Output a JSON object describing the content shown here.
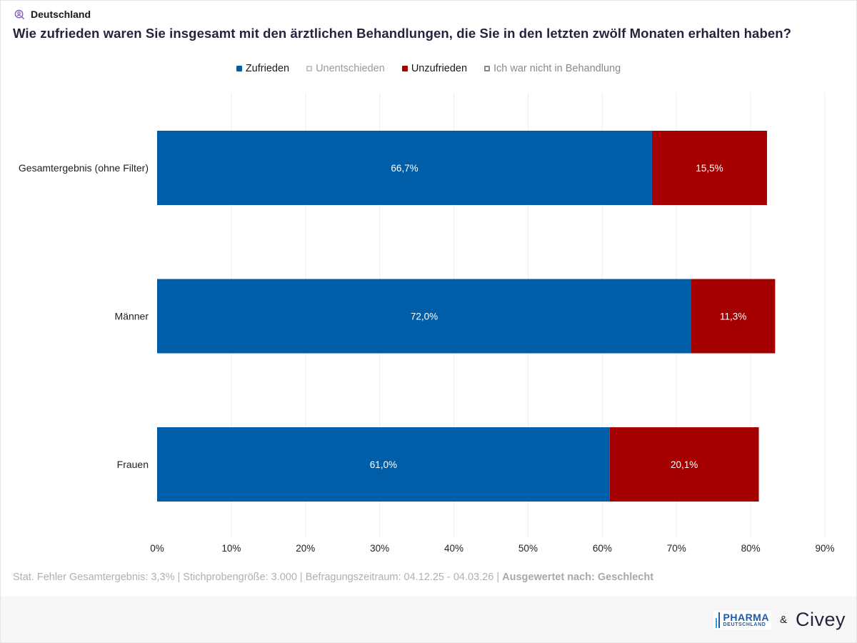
{
  "header": {
    "region": "Deutschland",
    "region_icon": "search-person-icon",
    "title": "Wie zufrieden waren Sie insgesamt mit den ärztlichen Behandlungen, die Sie in den letzten zwölf Monaten erhalten haben?"
  },
  "legend": [
    {
      "label": "Zufrieden",
      "color": "#005ea8",
      "style": "filled",
      "text_color": "#1a1a1a"
    },
    {
      "label": "Unentschieden",
      "color": "#c8c8c8",
      "style": "outline",
      "text_color": "#9a9a9a"
    },
    {
      "label": "Unzufrieden",
      "color": "#a50000",
      "style": "filled",
      "text_color": "#1a1a1a"
    },
    {
      "label": "Ich war nicht in Behandlung",
      "color": "#888888",
      "style": "outline",
      "text_color": "#8a8a8a"
    }
  ],
  "chart_data": {
    "type": "bar",
    "orientation": "horizontal",
    "stacked": true,
    "categories": [
      "Gesamtergebnis (ohne Filter)",
      "Männer",
      "Frauen"
    ],
    "series": [
      {
        "name": "Zufrieden",
        "values": [
          66.7,
          72.0,
          61.0
        ],
        "labels": [
          "66,7%",
          "72,0%",
          "61,0%"
        ],
        "color": "#005ea8"
      },
      {
        "name": "Unzufrieden",
        "values": [
          15.5,
          11.3,
          20.1
        ],
        "labels": [
          "15,5%",
          "11,3%",
          "20,1%"
        ],
        "color": "#a50000"
      }
    ],
    "xlim": [
      0,
      90
    ],
    "xticks": [
      0,
      10,
      20,
      30,
      40,
      50,
      60,
      70,
      80,
      90
    ],
    "xtick_labels": [
      "0%",
      "10%",
      "20%",
      "30%",
      "40%",
      "50%",
      "60%",
      "70%",
      "80%",
      "90%"
    ],
    "grid": true,
    "legend_position": "top"
  },
  "footer": {
    "note": "Stat. Fehler Gesamtergebnis: 3,3% | Stichprobengröße: 3.000 | Befragungszeitraum: 04.12.25 - 04.03.26 | ",
    "note_bold": "Ausgewertet nach: Geschlecht",
    "logo_pharma_line1": "PHARMA",
    "logo_pharma_line2": "DEUTSCHLAND",
    "ampersand": "&",
    "logo_civey": "Civey"
  }
}
